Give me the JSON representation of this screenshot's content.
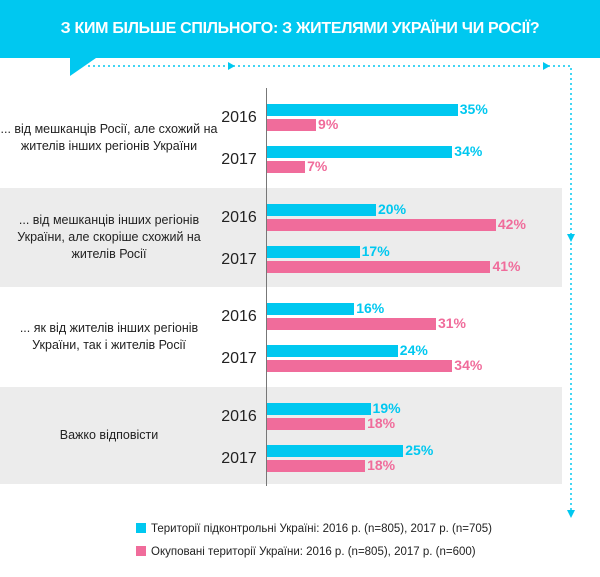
{
  "chart_data": {
    "type": "bar",
    "orientation": "horizontal",
    "title": "З КИМ БІЛЬШЕ СПІЛЬНОГО: З ЖИТЕЛЯМИ УКРАЇНИ ЧИ РОСІЇ?",
    "categories": [
      "... від мешканців Росії, але схожий на жителів інших регіонів України",
      "... від мешканців інших регіонів України, але скоріше схожий на жителів Росії",
      "... як від жителів інших регіонів України, так і жителів Росії",
      "Важко відповісти"
    ],
    "years": [
      "2016",
      "2017"
    ],
    "series": [
      {
        "name": "Території підконтрольні Україні:  2016 р. (n=805), 2017 р. (n=705)",
        "color": "#00c8f0",
        "values": {
          "2016": [
            35,
            20,
            16,
            19
          ],
          "2017": [
            34,
            17,
            24,
            25
          ]
        }
      },
      {
        "name": "Окуповані території України: 2016 р. (n=805), 2017 р. (n=600)",
        "color": "#f06c9b",
        "values": {
          "2016": [
            9,
            42,
            31,
            18
          ],
          "2017": [
            7,
            41,
            34,
            18
          ]
        }
      }
    ],
    "value_suffix": "%",
    "legend": "bottom"
  }
}
